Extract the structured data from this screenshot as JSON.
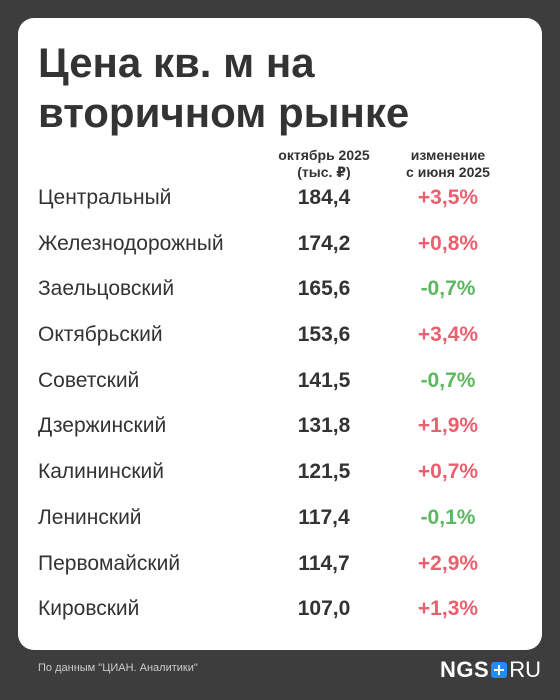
{
  "chart_data": {
    "type": "table",
    "title_lines": [
      "Цена кв. м на",
      "вторичном рынке"
    ],
    "columns": {
      "price_lines": [
        "октябрь 2025",
        "(тыс. ₽)"
      ],
      "change_lines": [
        "изменение",
        "с июня 2025"
      ]
    },
    "rows": [
      {
        "district": "Центральный",
        "price": "184,4",
        "change": "+3,5%"
      },
      {
        "district": "Железнодорожный",
        "price": "174,2",
        "change": "+0,8%"
      },
      {
        "district": "Заельцовский",
        "price": "165,6",
        "change": "-0,7%"
      },
      {
        "district": "Октябрьский",
        "price": "153,6",
        "change": "+3,4%"
      },
      {
        "district": "Советский",
        "price": "141,5",
        "change": "-0,7%"
      },
      {
        "district": "Дзержинский",
        "price": "131,8",
        "change": "+1,9%"
      },
      {
        "district": "Калининский",
        "price": "121,5",
        "change": "+0,7%"
      },
      {
        "district": "Ленинский",
        "price": "117,4",
        "change": "-0,1%"
      },
      {
        "district": "Первомайский",
        "price": "114,7",
        "change": "+2,9%"
      },
      {
        "district": "Кировский",
        "price": "107,0",
        "change": "+1,3%"
      }
    ],
    "colors": {
      "positive": "#ec5f6f",
      "negative": "#5cb85f",
      "text": "#333333",
      "background": "#3d3d3d",
      "brand": "#1f8cff"
    }
  },
  "footer": {
    "source": "По данным \"ЦИАН. Аналитики\"",
    "logo": {
      "left": "NGS",
      "right": "RU",
      "icon": "plus-icon"
    }
  }
}
